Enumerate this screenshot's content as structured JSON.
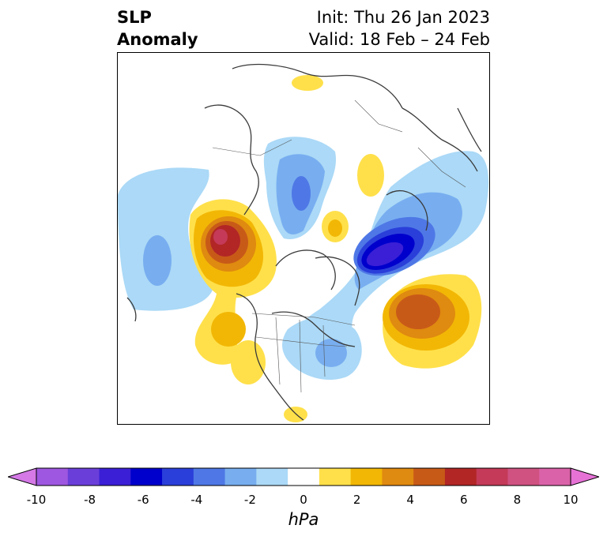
{
  "header": {
    "title_line1": "SLP",
    "title_line2": "Anomaly",
    "init": "Init: Thu 26 Jan 2023",
    "valid": "Valid: 18 Feb – 24 Feb"
  },
  "colorbar": {
    "unit": "hPa",
    "ticks": [
      "-10",
      "-8",
      "-6",
      "-4",
      "-2",
      "0",
      "2",
      "4",
      "6",
      "8",
      "10"
    ],
    "colors": [
      "#d479e6",
      "#9e57e0",
      "#6a3fd9",
      "#3a1fd6",
      "#0000cc",
      "#2a3fd9",
      "#4f78e6",
      "#78aef0",
      "#abd9f7",
      "#ffffff",
      "#ffe04a",
      "#f2b705",
      "#df8a10",
      "#c85a18",
      "#b22626",
      "#c43a58",
      "#cf5280",
      "#da62a8",
      "#e672d6"
    ]
  },
  "map": {
    "features": [
      {
        "name": "pacific-low",
        "sign": "negative",
        "level": "-2"
      },
      {
        "name": "west-coast-high",
        "sign": "positive",
        "level": "7"
      },
      {
        "name": "north-atlantic-low",
        "sign": "negative",
        "level": "-6"
      },
      {
        "name": "east-atlantic-high",
        "sign": "positive",
        "level": "5"
      }
    ]
  }
}
